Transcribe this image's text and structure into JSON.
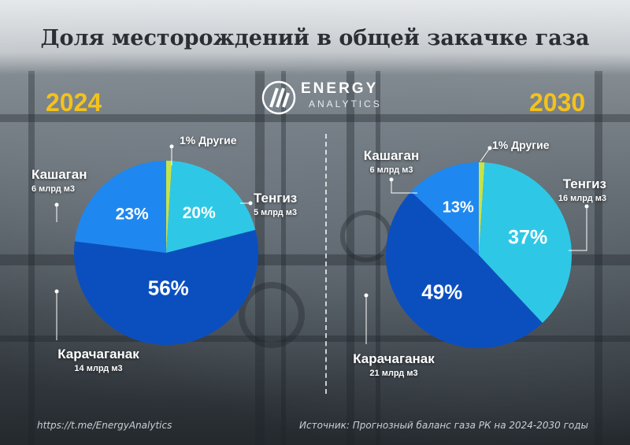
{
  "title": "Доля месторождений в общей закачке газа",
  "logo": {
    "word1": "ENERGY",
    "word2": "ANALYTICS"
  },
  "footer": {
    "link": "https://t.me/EnergyAnalytics",
    "source": "Источник: Прогнозный баланс газа РК на 2024-2030 годы"
  },
  "colors": {
    "tengiz": "#2ec8e6",
    "kashagan": "#1e88f0",
    "karachaganak": "#0b4fbf",
    "other": "#c6e34a",
    "year": "#f3c21b"
  },
  "chart_data": [
    {
      "type": "pie",
      "title": "2024",
      "slices": [
        {
          "name": "Другие",
          "percent": 1,
          "label": "1%",
          "volume": ""
        },
        {
          "name": "Тенгиз",
          "percent": 20,
          "label": "20%",
          "volume": "5 млрд м3"
        },
        {
          "name": "Карачаганак",
          "percent": 56,
          "label": "56%",
          "volume": "14 млрд м3"
        },
        {
          "name": "Кашаган",
          "percent": 23,
          "label": "23%",
          "volume": "6 млрд м3"
        }
      ]
    },
    {
      "type": "pie",
      "title": "2030",
      "slices": [
        {
          "name": "Другие",
          "percent": 1,
          "label": "1%",
          "volume": ""
        },
        {
          "name": "Тенгиз",
          "percent": 37,
          "label": "37%",
          "volume": "16 млрд м3"
        },
        {
          "name": "Карачаганак",
          "percent": 49,
          "label": "49%",
          "volume": "21 млрд м3"
        },
        {
          "name": "Кашаган",
          "percent": 13,
          "label": "13%",
          "volume": "6 млрд м3"
        }
      ]
    }
  ]
}
